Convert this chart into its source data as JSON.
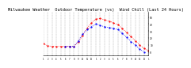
{
  "title": "Milwaukee Weather  Outdoor Temperature (vs)  Wind Chill (Last 24 Hours)",
  "title_fontsize": 3.8,
  "bg_color": "#ffffff",
  "plot_bg": "#ffffff",
  "grid_color": "#888888",
  "x_labels": [
    "1",
    "2",
    "3",
    "4",
    "5",
    "6",
    "7",
    "8",
    "9",
    "10",
    "11",
    "12",
    "1",
    "2",
    "3",
    "4",
    "5",
    "6",
    "7",
    "8",
    "9",
    "10",
    "11",
    "12",
    "1"
  ],
  "ylim": [
    -5,
    58
  ],
  "yticks": [
    0,
    10,
    20,
    30,
    40,
    50
  ],
  "ytick_labels": [
    "0",
    "10",
    "20",
    "30",
    "40",
    "50"
  ],
  "red_x": [
    0,
    1,
    2,
    3,
    4,
    5,
    6,
    7,
    8,
    9,
    10,
    11,
    12,
    13,
    14,
    15,
    16,
    17,
    18,
    19,
    20,
    21,
    22,
    23,
    24
  ],
  "red_y": [
    12,
    9,
    8,
    8,
    8,
    8,
    8,
    8,
    14,
    24,
    34,
    42,
    47,
    48,
    46,
    44,
    42,
    39,
    34,
    28,
    22,
    16,
    10,
    5,
    2
  ],
  "blue_x": [
    5,
    6,
    7,
    8,
    9,
    10,
    11,
    12,
    13,
    14,
    15,
    16,
    17,
    18,
    19,
    20,
    21,
    22,
    23
  ],
  "blue_y": [
    8,
    8,
    8,
    16,
    26,
    32,
    36,
    40,
    38,
    36,
    35,
    34,
    32,
    27,
    21,
    15,
    10,
    4,
    0
  ],
  "red_color": "#ff0000",
  "blue_color": "#0000ff",
  "marker_size": 1.2,
  "linewidth": 0.6
}
